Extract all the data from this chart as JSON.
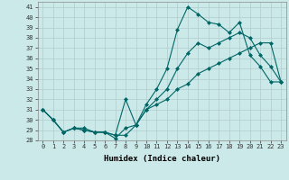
{
  "title": "",
  "xlabel": "Humidex (Indice chaleur)",
  "ylabel": "",
  "background_color": "#cce9e9",
  "grid_color": "#b0cccc",
  "line_color": "#006666",
  "xlim": [
    -0.5,
    23.5
  ],
  "ylim": [
    28,
    41.5
  ],
  "xticks": [
    0,
    1,
    2,
    3,
    4,
    5,
    6,
    7,
    8,
    9,
    10,
    11,
    12,
    13,
    14,
    15,
    16,
    17,
    18,
    19,
    20,
    21,
    22,
    23
  ],
  "yticks": [
    28,
    29,
    30,
    31,
    32,
    33,
    34,
    35,
    36,
    37,
    38,
    39,
    40,
    41
  ],
  "series": [
    {
      "x": [
        0,
        1,
        2,
        3,
        4,
        5,
        6,
        7,
        8,
        9,
        10,
        11,
        12,
        13,
        14,
        15,
        16,
        17,
        18,
        19,
        20,
        21,
        22,
        23
      ],
      "y": [
        31,
        30,
        28.8,
        29.2,
        29.0,
        28.8,
        28.8,
        28.2,
        29.2,
        29.5,
        31.5,
        33.0,
        35.0,
        38.8,
        41.0,
        40.3,
        39.5,
        39.3,
        38.5,
        39.5,
        36.3,
        35.2,
        33.7,
        33.7
      ]
    },
    {
      "x": [
        0,
        1,
        2,
        3,
        4,
        5,
        6,
        7,
        8,
        9,
        10,
        11,
        12,
        13,
        14,
        15,
        16,
        17,
        18,
        19,
        20,
        21,
        22,
        23
      ],
      "y": [
        31,
        30,
        28.8,
        29.2,
        29.2,
        28.8,
        28.8,
        28.5,
        32.0,
        29.5,
        31.0,
        32.0,
        33.0,
        35.0,
        36.5,
        37.5,
        37.0,
        37.5,
        38.0,
        38.5,
        38.0,
        36.3,
        35.2,
        33.7
      ]
    },
    {
      "x": [
        0,
        1,
        2,
        3,
        4,
        5,
        6,
        7,
        8,
        9,
        10,
        11,
        12,
        13,
        14,
        15,
        16,
        17,
        18,
        19,
        20,
        21,
        22,
        23
      ],
      "y": [
        31,
        30,
        28.8,
        29.2,
        29.0,
        28.8,
        28.8,
        28.5,
        28.5,
        29.5,
        31.0,
        31.5,
        32.0,
        33.0,
        33.5,
        34.5,
        35.0,
        35.5,
        36.0,
        36.5,
        37.0,
        37.5,
        37.5,
        33.7
      ]
    }
  ]
}
